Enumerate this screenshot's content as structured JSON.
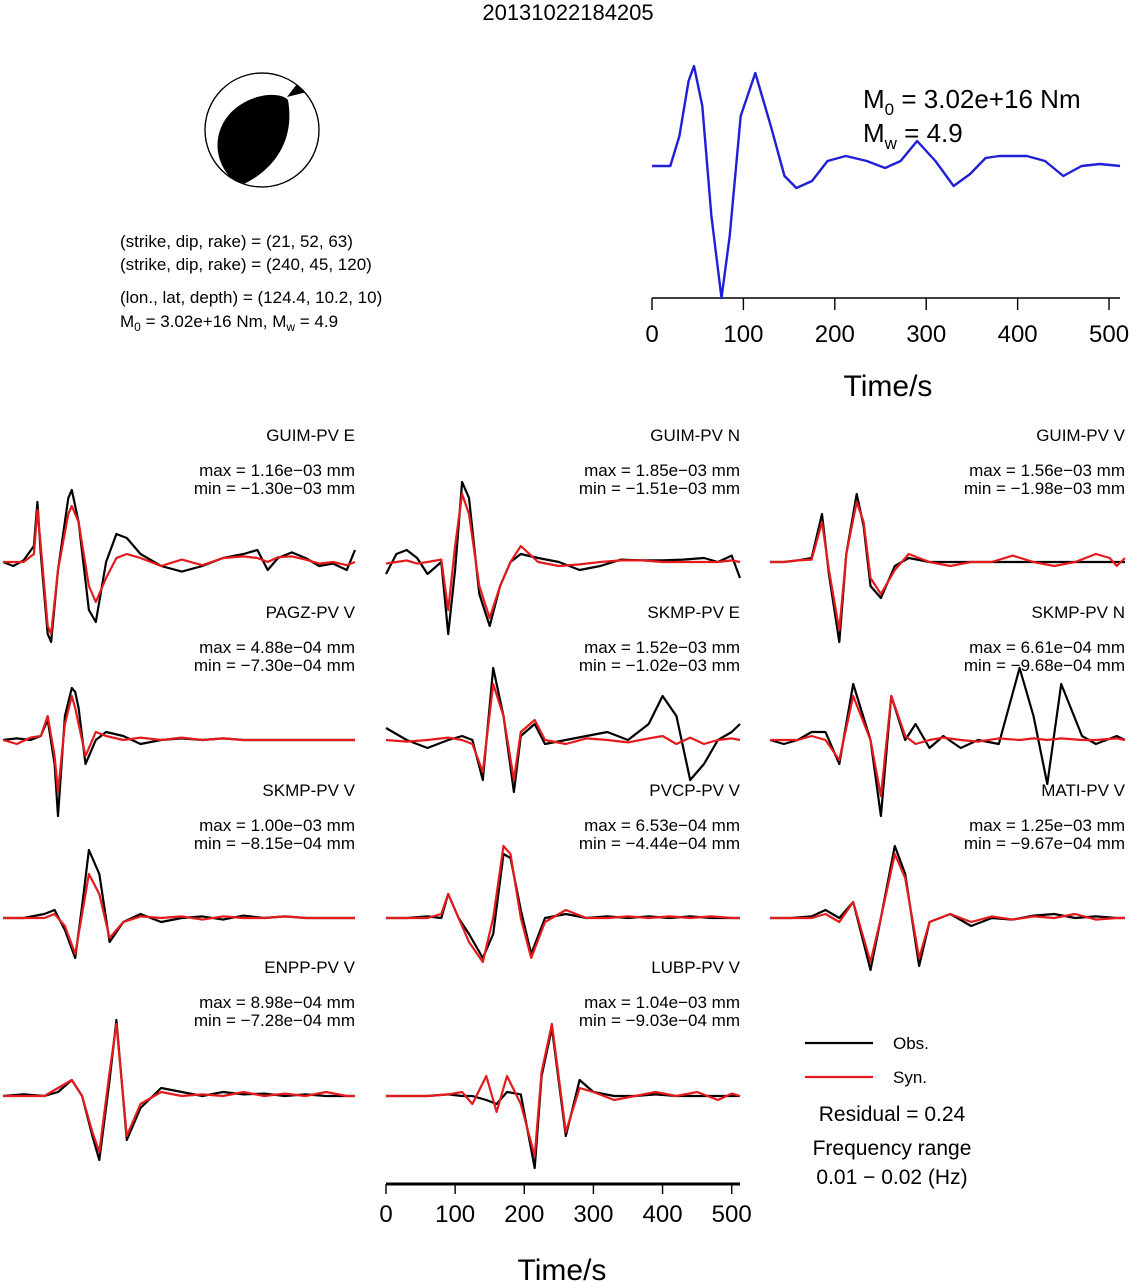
{
  "title": "20131022184205",
  "mechanism": {
    "plane1": "(strike, dip, rake) = (21, 52, 63)",
    "plane2": "(strike, dip, rake) = (240, 45, 120)",
    "location": "(lon., lat, depth) = (124.4, 10.2, 10)",
    "moment_prefix": "M",
    "moment_sub": "0",
    "moment_mid": " = 3.02e+16 Nm, M",
    "moment_sub2": "w",
    "moment_end": " = 4.9"
  },
  "stf": {
    "m0_label": "M",
    "m0_sub": "0",
    "m0_value": " = 3.02e+16 Nm",
    "mw_label": "M",
    "mw_sub": "w",
    "mw_value": " = 4.9",
    "xlabel": "Time/s",
    "xticks": [
      "0",
      "100",
      "200",
      "300",
      "400",
      "500"
    ]
  },
  "waveform_axis": {
    "xlabel": "Time/s",
    "xticks": [
      "0",
      "100",
      "200",
      "300",
      "400",
      "500"
    ]
  },
  "legend": {
    "obs": "Obs.",
    "syn": "Syn.",
    "residual": "Residual = 0.24",
    "freq_title": "Frequency range",
    "freq_value": "0.01 − 0.02 (Hz)"
  },
  "colors": {
    "observed": "#000000",
    "synthetic": "#e41a1c",
    "stf": "#1f1fd6",
    "beachball": "#000000"
  },
  "chart_data": [
    {
      "type": "line",
      "name": "source-time-function",
      "x_range": [
        0,
        512
      ],
      "x": [
        0,
        20,
        30,
        40,
        46,
        55,
        65,
        76,
        85,
        97,
        113,
        130,
        145,
        158,
        175,
        192,
        212,
        235,
        255,
        272,
        290,
        310,
        330,
        348,
        365,
        380,
        395,
        410,
        430,
        450,
        470,
        490,
        512
      ],
      "y": [
        0,
        0,
        0.3,
        0.85,
        1,
        0.6,
        -0.5,
        -1.32,
        -0.7,
        0.5,
        0.93,
        0.4,
        -0.1,
        -0.22,
        -0.15,
        0.05,
        0.1,
        0.05,
        -0.02,
        0.05,
        0.25,
        0.05,
        -0.2,
        -0.08,
        0.08,
        0.1,
        0.1,
        0.1,
        0.05,
        -0.1,
        0.0,
        0.02,
        0.0
      ]
    },
    {
      "type": "line",
      "station": "GUIM-PV E",
      "max": "max = 1.16e−03 mm",
      "min": "min = −1.30e−03 mm",
      "x": [
        0,
        15,
        30,
        45,
        50,
        55,
        65,
        70,
        80,
        95,
        100,
        110,
        125,
        135,
        150,
        165,
        180,
        200,
        230,
        260,
        290,
        320,
        350,
        370,
        385,
        400,
        420,
        440,
        460,
        480,
        500,
        512
      ],
      "obs": [
        0,
        -0.05,
        0.02,
        0.2,
        0.75,
        0.1,
        -0.9,
        -1.0,
        -0.1,
        0.8,
        0.9,
        0.5,
        -0.6,
        -0.75,
        0.0,
        0.35,
        0.3,
        0.1,
        -0.05,
        -0.12,
        -0.05,
        0.05,
        0.1,
        0.15,
        -0.1,
        0.05,
        0.12,
        0.05,
        -0.05,
        -0.02,
        -0.1,
        0.15
      ],
      "syn": [
        0,
        0,
        0,
        0.1,
        0.65,
        0.2,
        -0.8,
        -0.9,
        -0.1,
        0.6,
        0.7,
        0.5,
        -0.3,
        -0.5,
        -0.2,
        0.05,
        0.1,
        0.05,
        -0.05,
        0.03,
        -0.04,
        0.05,
        0.07,
        0.05,
        0,
        0.06,
        0.07,
        0.03,
        -0.02,
        0.0,
        -0.04,
        0.0
      ]
    },
    {
      "type": "line",
      "station": "GUIM-PV N",
      "max": "max = 1.85e−03 mm",
      "min": "min = −1.51e−03 mm",
      "x": [
        0,
        15,
        30,
        45,
        60,
        80,
        90,
        100,
        110,
        120,
        135,
        150,
        165,
        180,
        195,
        220,
        250,
        280,
        310,
        340,
        370,
        400,
        430,
        460,
        480,
        500,
        512
      ],
      "obs": [
        -0.15,
        0.1,
        0.15,
        0.05,
        -0.15,
        0.0,
        -0.9,
        -0.1,
        1.0,
        0.8,
        -0.4,
        -0.8,
        -0.3,
        0.0,
        0.1,
        0.05,
        0.0,
        -0.1,
        -0.05,
        0.03,
        0.02,
        0.02,
        0.03,
        0.05,
        0.0,
        0.08,
        -0.2
      ],
      "syn": [
        -0.02,
        0.0,
        0.02,
        -0.02,
        0.0,
        0.03,
        -0.6,
        0.2,
        0.85,
        0.6,
        -0.3,
        -0.7,
        -0.3,
        0.0,
        0.2,
        0.0,
        -0.05,
        -0.03,
        0.0,
        0.02,
        0.02,
        0.0,
        0.0,
        0.0,
        0.0,
        0.02,
        0.0
      ]
    },
    {
      "type": "line",
      "station": "GUIM-PV V",
      "max": "max = 1.56e−03 mm",
      "min": "min = −1.98e−03 mm",
      "x": [
        0,
        20,
        40,
        60,
        75,
        85,
        100,
        110,
        125,
        135,
        145,
        160,
        180,
        200,
        230,
        260,
        290,
        320,
        350,
        380,
        410,
        440,
        470,
        490,
        500,
        512
      ],
      "obs": [
        0,
        0,
        0.02,
        0.05,
        0.6,
        -0.15,
        -1.0,
        0.1,
        0.85,
        0.45,
        -0.3,
        -0.45,
        -0.05,
        0.05,
        0.0,
        0.0,
        0.0,
        0.0,
        0.0,
        0.0,
        0.0,
        0.0,
        0.0,
        0.0,
        0.0,
        0.0
      ],
      "syn": [
        0,
        0,
        0.02,
        0.03,
        0.5,
        -0.1,
        -0.85,
        0.1,
        0.75,
        0.5,
        -0.2,
        -0.4,
        -0.1,
        0.1,
        0.0,
        -0.05,
        0.0,
        0.0,
        0.08,
        0.0,
        -0.05,
        0.0,
        0.1,
        0.05,
        -0.05,
        0.05
      ]
    },
    {
      "type": "line",
      "station": "PAGZ-PV V",
      "max": "max = 4.88e−04 mm",
      "min": "min = −7.30e−04 mm",
      "x": [
        0,
        20,
        40,
        55,
        65,
        75,
        80,
        90,
        100,
        105,
        110,
        120,
        135,
        150,
        175,
        200,
        230,
        260,
        290,
        320,
        350,
        380,
        410,
        440,
        470,
        500,
        512
      ],
      "obs": [
        0,
        0.02,
        0.0,
        0.05,
        0.25,
        -0.3,
        -0.95,
        0.3,
        0.65,
        0.6,
        0.4,
        -0.3,
        0.0,
        0.1,
        0.05,
        -0.05,
        0.0,
        0.02,
        0.0,
        0.02,
        0.0,
        0.0,
        0.0,
        0.0,
        0.0,
        0.0,
        0.0
      ],
      "syn": [
        0,
        -0.05,
        0.03,
        0.05,
        0.3,
        -0.2,
        -0.65,
        0.2,
        0.55,
        0.4,
        0.2,
        -0.2,
        0.1,
        0.05,
        0.0,
        0.03,
        0.0,
        0.03,
        0.0,
        0.02,
        0.0,
        0.0,
        0.0,
        0.0,
        0.0,
        0.0,
        0.0
      ]
    },
    {
      "type": "line",
      "station": "SKMP-PV E",
      "max": "max = 1.52e−03 mm",
      "min": "min = −1.02e−03 mm",
      "x": [
        0,
        30,
        60,
        90,
        110,
        125,
        140,
        155,
        170,
        185,
        195,
        215,
        230,
        260,
        290,
        320,
        350,
        380,
        400,
        420,
        440,
        460,
        480,
        500,
        512
      ],
      "obs": [
        0.15,
        0.0,
        -0.1,
        0.0,
        0.05,
        0.0,
        -0.5,
        0.9,
        0.3,
        -0.65,
        0.05,
        0.2,
        -0.05,
        0.0,
        0.05,
        0.1,
        0.0,
        0.2,
        0.55,
        0.3,
        -0.5,
        -0.3,
        0.0,
        0.1,
        0.2
      ],
      "syn": [
        0,
        -0.02,
        0.0,
        0.03,
        0.0,
        -0.05,
        -0.4,
        0.7,
        0.3,
        -0.5,
        0.1,
        0.25,
        0.0,
        -0.05,
        0.02,
        0.0,
        -0.03,
        0.02,
        0.05,
        -0.05,
        0.03,
        -0.05,
        0.0,
        0.02,
        0.0
      ]
    },
    {
      "type": "line",
      "station": "SKMP-PV N",
      "max": "max = 6.61e−04 mm",
      "min": "min = −9.68e−04 mm",
      "x": [
        0,
        20,
        40,
        60,
        80,
        100,
        120,
        145,
        160,
        175,
        195,
        210,
        230,
        250,
        275,
        300,
        330,
        360,
        380,
        400,
        420,
        450,
        470,
        500,
        512
      ],
      "obs": [
        0.0,
        -0.05,
        0.0,
        0.1,
        0.1,
        -0.3,
        0.7,
        0.0,
        -0.95,
        0.55,
        0.0,
        0.2,
        -0.1,
        0.05,
        -0.1,
        0.0,
        -0.05,
        0.9,
        0.3,
        -0.55,
        0.7,
        0.05,
        -0.05,
        0.05,
        0.0
      ],
      "syn": [
        0.0,
        0.0,
        0.0,
        0.05,
        0.0,
        -0.25,
        0.55,
        0.0,
        -0.7,
        0.55,
        0.05,
        -0.05,
        0.0,
        0.03,
        0.0,
        -0.02,
        0.02,
        0.0,
        0.02,
        0.0,
        0.02,
        0.0,
        0.0,
        0.02,
        0.0
      ]
    },
    {
      "type": "line",
      "station": "SKMP-PV V",
      "max": "max = 1.00e−03 mm",
      "min": "min = −8.15e−04 mm",
      "x": [
        0,
        30,
        60,
        75,
        90,
        105,
        115,
        125,
        140,
        155,
        175,
        200,
        230,
        260,
        290,
        320,
        350,
        380,
        410,
        440,
        470,
        500,
        512
      ],
      "obs": [
        0,
        0.0,
        0.05,
        0.1,
        -0.15,
        -0.5,
        0.15,
        0.85,
        0.55,
        -0.3,
        -0.05,
        0.05,
        -0.05,
        0.0,
        0.02,
        -0.02,
        0.03,
        0.0,
        0.02,
        0.0,
        0.0,
        0.0,
        0.0
      ],
      "syn": [
        0,
        0.0,
        0.0,
        0.05,
        -0.1,
        -0.45,
        0.05,
        0.55,
        0.3,
        -0.25,
        -0.05,
        0.02,
        0.0,
        0.02,
        -0.02,
        0.02,
        0.0,
        0.0,
        0.02,
        0.0,
        0.0,
        0.0,
        0.0
      ]
    },
    {
      "type": "line",
      "station": "PVCP-PV V",
      "max": "max = 6.53e−04 mm",
      "min": "min = −4.44e−04 mm",
      "x": [
        0,
        30,
        60,
        80,
        90,
        105,
        120,
        140,
        155,
        170,
        180,
        195,
        210,
        230,
        260,
        290,
        320,
        350,
        380,
        410,
        440,
        470,
        500,
        512
      ],
      "obs": [
        0,
        0.0,
        0.02,
        0.0,
        0.3,
        0.0,
        -0.2,
        -0.5,
        -0.2,
        0.8,
        0.75,
        0.1,
        -0.45,
        0.0,
        0.05,
        0.0,
        0.02,
        0.0,
        0.02,
        0.0,
        0.02,
        0.0,
        0.0,
        0.0
      ],
      "syn": [
        0,
        0.0,
        0.0,
        0.05,
        0.3,
        0.0,
        -0.3,
        -0.55,
        0.0,
        0.9,
        0.8,
        0.0,
        -0.5,
        -0.05,
        0.1,
        0.0,
        0.0,
        0.02,
        0.0,
        0.02,
        0.0,
        0.02,
        0.0,
        0.0
      ]
    },
    {
      "type": "line",
      "station": "MATI-PV V",
      "max": "max = 1.25e−03 mm",
      "min": "min = −9.67e−04 mm",
      "x": [
        0,
        30,
        60,
        80,
        100,
        120,
        145,
        160,
        180,
        195,
        215,
        230,
        260,
        290,
        320,
        350,
        380,
        410,
        440,
        470,
        500,
        512
      ],
      "obs": [
        0,
        0.0,
        0.02,
        0.1,
        0.0,
        0.2,
        -0.65,
        0.0,
        0.9,
        0.55,
        -0.6,
        -0.05,
        0.05,
        -0.1,
        0.0,
        -0.02,
        0.03,
        0.05,
        0.0,
        0.02,
        0.0,
        0.0
      ],
      "syn": [
        0,
        0.0,
        0.0,
        0.05,
        -0.05,
        0.2,
        -0.55,
        0.0,
        0.8,
        0.5,
        -0.5,
        -0.05,
        0.05,
        -0.05,
        0.02,
        -0.02,
        0.02,
        0.0,
        0.05,
        -0.02,
        0.0,
        0.0
      ]
    },
    {
      "type": "line",
      "station": "ENPP-PV V",
      "max": "max = 8.98e−04 mm",
      "min": "min = −7.28e−04 mm",
      "x": [
        0,
        30,
        60,
        80,
        100,
        115,
        130,
        140,
        155,
        165,
        180,
        200,
        230,
        260,
        290,
        320,
        350,
        380,
        410,
        440,
        470,
        500,
        512
      ],
      "obs": [
        0,
        0.02,
        0.0,
        0.05,
        0.2,
        0.0,
        -0.5,
        -0.8,
        0.2,
        0.95,
        -0.55,
        -0.15,
        0.1,
        0.05,
        0.0,
        0.05,
        0.02,
        0.03,
        0.0,
        0.02,
        0.0,
        0.0,
        0.0
      ],
      "syn": [
        0,
        0.0,
        0.0,
        0.1,
        0.2,
        0.0,
        -0.45,
        -0.7,
        0.3,
        0.9,
        -0.5,
        -0.1,
        0.05,
        0.0,
        0.02,
        0.0,
        0.05,
        0.0,
        0.03,
        0.0,
        0.05,
        0.0,
        0.0
      ]
    },
    {
      "type": "line",
      "station": "LUBP-PV V",
      "max": "max = 1.04e−03 mm",
      "min": "min = −9.03e−04 mm",
      "x": [
        0,
        30,
        60,
        90,
        110,
        125,
        145,
        160,
        175,
        195,
        215,
        225,
        240,
        260,
        280,
        300,
        330,
        360,
        390,
        420,
        450,
        480,
        500,
        512
      ],
      "obs": [
        0,
        0.0,
        0.0,
        0.02,
        0.0,
        0.0,
        -0.05,
        -0.1,
        0.05,
        0.02,
        -0.9,
        0.25,
        0.85,
        -0.5,
        0.2,
        0.05,
        0.0,
        0.0,
        0.02,
        0.0,
        0.0,
        0.0,
        0.0,
        0.0
      ],
      "syn": [
        0,
        0.0,
        0.0,
        0.02,
        0.05,
        -0.1,
        0.25,
        -0.2,
        0.25,
        -0.1,
        -0.75,
        0.3,
        0.9,
        -0.45,
        0.1,
        0.05,
        -0.05,
        0.0,
        0.05,
        0.0,
        0.05,
        -0.05,
        0.03,
        0.0
      ]
    }
  ]
}
